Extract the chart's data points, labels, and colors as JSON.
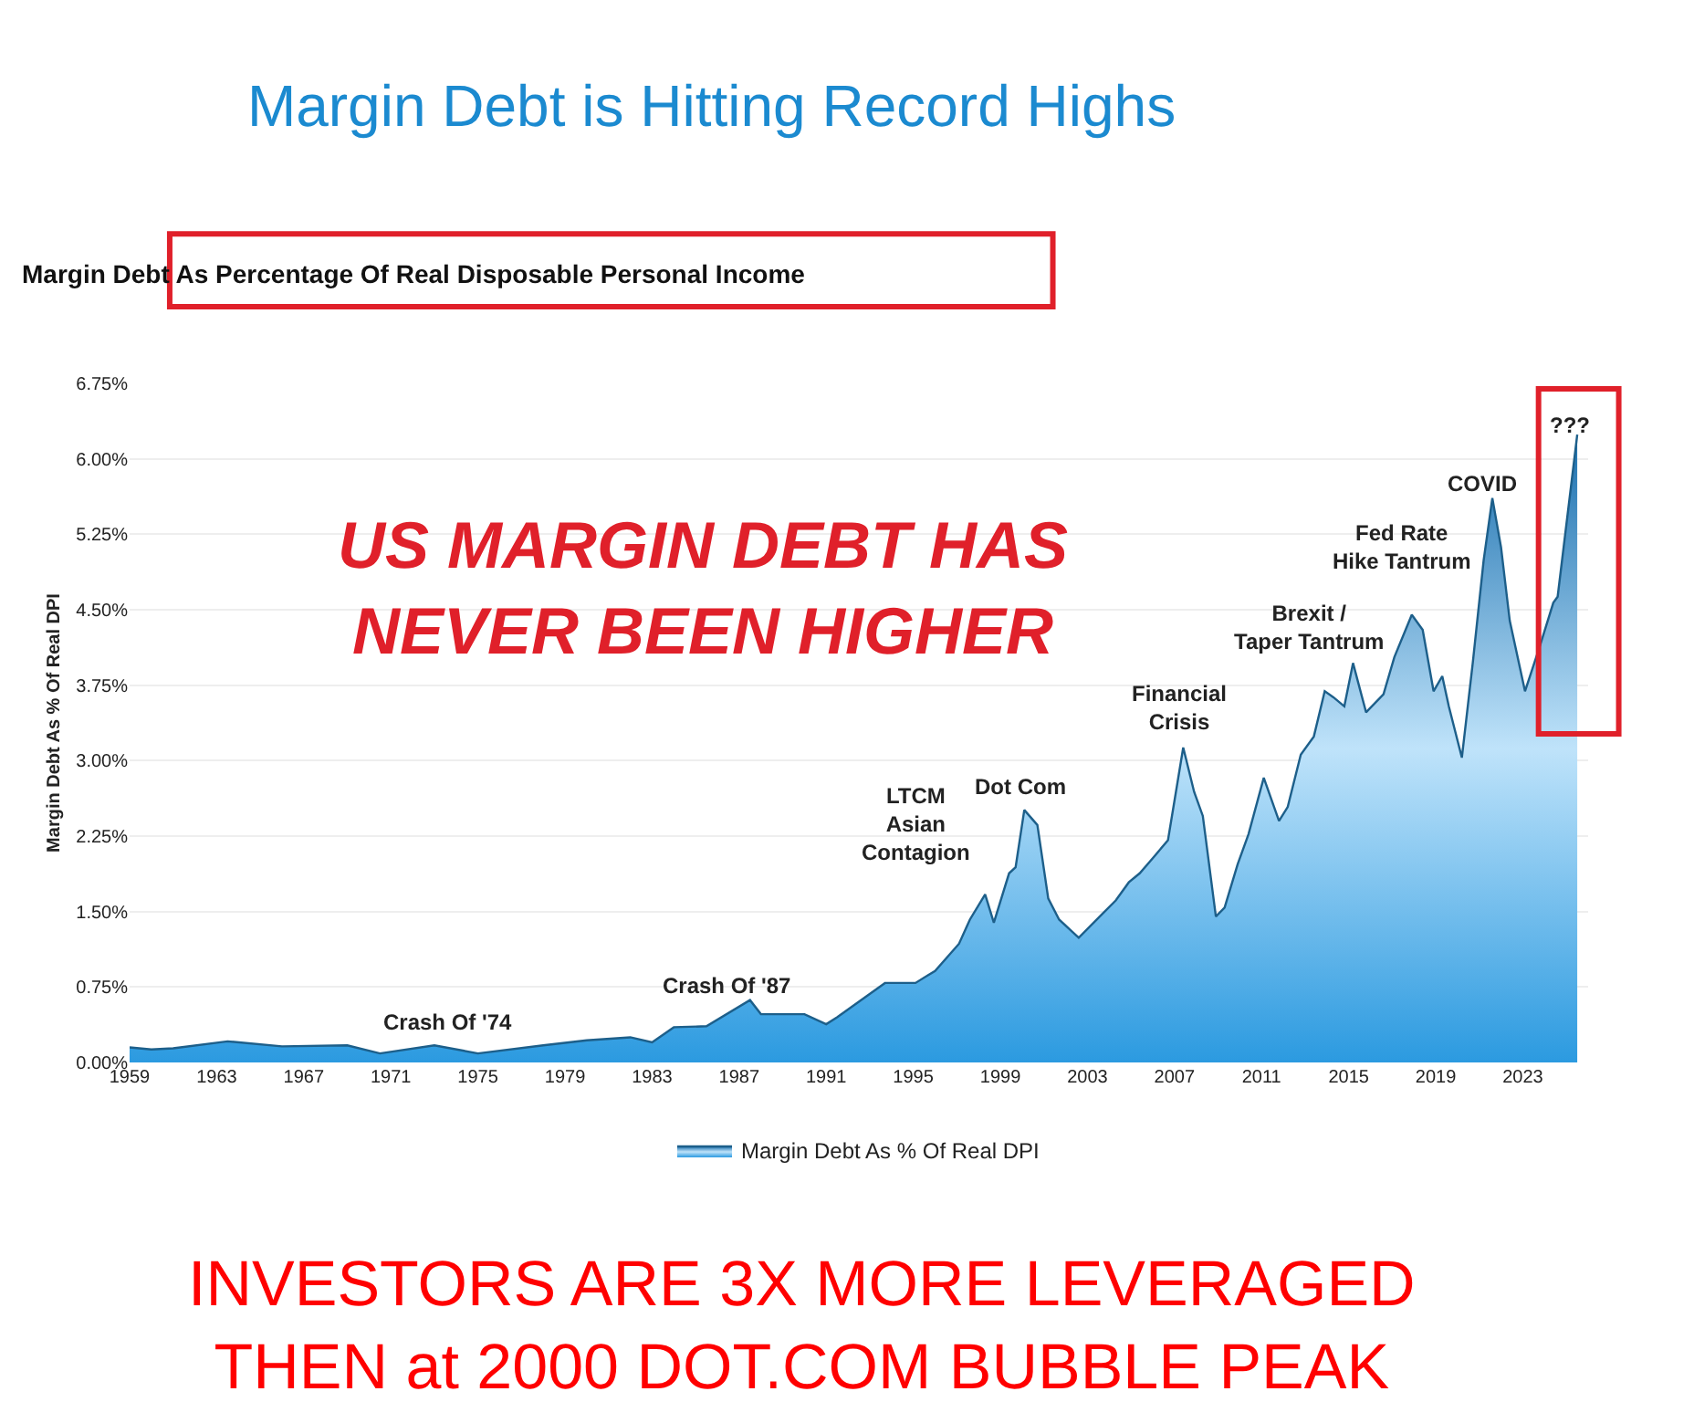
{
  "chart_data": {
    "type": "area",
    "title": "Margin Debt is Hitting Record Highs",
    "subtitle": "Margin Debt As Percentage Of Real Disposable Personal Income",
    "ylabel": "Margin Debt As % Of Real DPI",
    "annotations": [
      "US MARGIN DEBT HAS\nNEVER BEEN HIGHER",
      "INVESTORS ARE 3X MORE LEVERAGED\nTHEN at 2000 DOT.COM BUBBLE PEAK",
      "Crash Of '74",
      "Crash Of '87",
      "LTCM\nAsian\nContagion",
      "Dot Com",
      "Financial\nCrisis",
      "Brexit /\nTaper Tantrum",
      "Fed Rate\nHike Tantrum",
      "COVID",
      "???"
    ],
    "series": [
      {
        "name": "Margin Debt As % Of Real DPI",
        "color": "#2b9ae0",
        "x": [
          1959,
          1960,
          1961,
          1963.5,
          1966,
          1969,
          1970.5,
          1973,
          1975,
          1978,
          1980,
          1982,
          1983,
          1984,
          1985.5,
          1987.5,
          1988,
          1990,
          1991,
          1991.5,
          1993.7,
          1995.1,
          1996.0,
          1997.1,
          1997.6,
          1998.3,
          1998.7,
          1999.4,
          1999.7,
          2000.1,
          2000.7,
          2001.2,
          2001.7,
          2002.6,
          2003.7,
          2004.3,
          2004.9,
          2005.4,
          2006.0,
          2006.7,
          2007.4,
          2007.9,
          2008.3,
          2008.9,
          2009.3,
          2009.9,
          2010.4,
          2011.1,
          2011.8,
          2012.2,
          2012.8,
          2013.4,
          2013.9,
          2014.3,
          2014.8,
          2015.2,
          2015.8,
          2016.6,
          2017.1,
          2017.9,
          2018.4,
          2018.9,
          2019.3,
          2019.6,
          2020.2,
          2020.7,
          2021.2,
          2021.6,
          2022.0,
          2022.4,
          2023.1,
          2023.8,
          2024.4,
          2024.6,
          2025.5
        ],
        "values": [
          0.15,
          0.13,
          0.14,
          0.21,
          0.16,
          0.17,
          0.09,
          0.17,
          0.09,
          0.17,
          0.22,
          0.25,
          0.2,
          0.35,
          0.36,
          0.62,
          0.48,
          0.48,
          0.38,
          0.45,
          0.79,
          0.79,
          0.91,
          1.18,
          1.42,
          1.67,
          1.39,
          1.88,
          1.94,
          2.51,
          2.36,
          1.63,
          1.42,
          1.24,
          1.48,
          1.61,
          1.79,
          1.88,
          2.03,
          2.21,
          3.13,
          2.69,
          2.45,
          1.45,
          1.54,
          1.97,
          2.27,
          2.83,
          2.4,
          2.54,
          3.06,
          3.24,
          3.69,
          3.63,
          3.54,
          3.97,
          3.48,
          3.66,
          4.03,
          4.45,
          4.3,
          3.69,
          3.84,
          3.54,
          3.03,
          3.97,
          4.99,
          5.61,
          5.12,
          4.39,
          3.69,
          4.15,
          4.57,
          4.63,
          6.24
        ]
      }
    ],
    "xlim": [
      1959,
      2026
    ],
    "xticks": [
      1959,
      1963,
      1967,
      1971,
      1975,
      1979,
      1983,
      1987,
      1991,
      1995,
      1999,
      2003,
      2007,
      2011,
      2015,
      2019,
      2023
    ],
    "ylim": [
      0,
      6.75
    ],
    "yticks": [
      {
        "value": 0,
        "label": "0.00%"
      },
      {
        "value": 0.75,
        "label": "0.75%"
      },
      {
        "value": 1.5,
        "label": "1.50%"
      },
      {
        "value": 2.25,
        "label": "2.25%"
      },
      {
        "value": 3,
        "label": "3.00%"
      },
      {
        "value": 3.75,
        "label": "3.75%"
      },
      {
        "value": 4.5,
        "label": "4.50%"
      },
      {
        "value": 5.25,
        "label": "5.25%"
      },
      {
        "value": 6,
        "label": "6.00%"
      },
      {
        "value": 6.75,
        "label": "6.75%"
      }
    ],
    "grid": "y",
    "legend": "bottom"
  }
}
